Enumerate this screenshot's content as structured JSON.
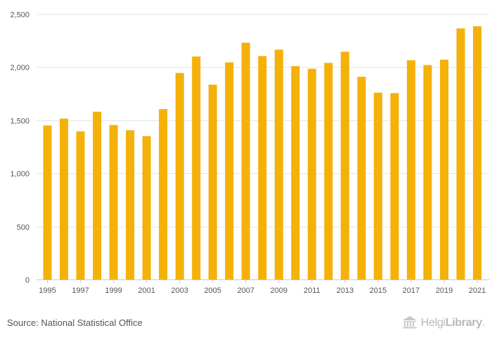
{
  "chart_data": {
    "type": "bar",
    "title": "",
    "xlabel": "",
    "ylabel": "",
    "ylim": [
      0,
      2500
    ],
    "yticks": [
      0,
      500,
      1000,
      1500,
      2000,
      2500
    ],
    "ytick_labels": [
      "0",
      "500",
      "1,000",
      "1,500",
      "2,000",
      "2,500"
    ],
    "categories": [
      "1995",
      "1996",
      "1997",
      "1998",
      "1999",
      "2000",
      "2001",
      "2002",
      "2003",
      "2004",
      "2005",
      "2006",
      "2007",
      "2008",
      "2009",
      "2010",
      "2011",
      "2012",
      "2013",
      "2014",
      "2015",
      "2016",
      "2017",
      "2018",
      "2019",
      "2020",
      "2021"
    ],
    "xtick_labels": [
      "1995",
      "1997",
      "1999",
      "2001",
      "2003",
      "2005",
      "2007",
      "2009",
      "2011",
      "2013",
      "2015",
      "2017",
      "2019",
      "2021"
    ],
    "values": [
      1450,
      1515,
      1395,
      1580,
      1455,
      1405,
      1350,
      1605,
      1945,
      2100,
      1835,
      2045,
      2230,
      2105,
      2165,
      2010,
      1985,
      2040,
      2145,
      1910,
      1760,
      1755,
      2065,
      2020,
      2070,
      2365,
      2385
    ],
    "bar_color": "#f4b10a",
    "grid": true,
    "legend": "none"
  },
  "footer": {
    "source": "Source: National Statistical Office",
    "brand_regular": "Helgi",
    "brand_bold": "Library",
    "brand_suffix": "."
  }
}
